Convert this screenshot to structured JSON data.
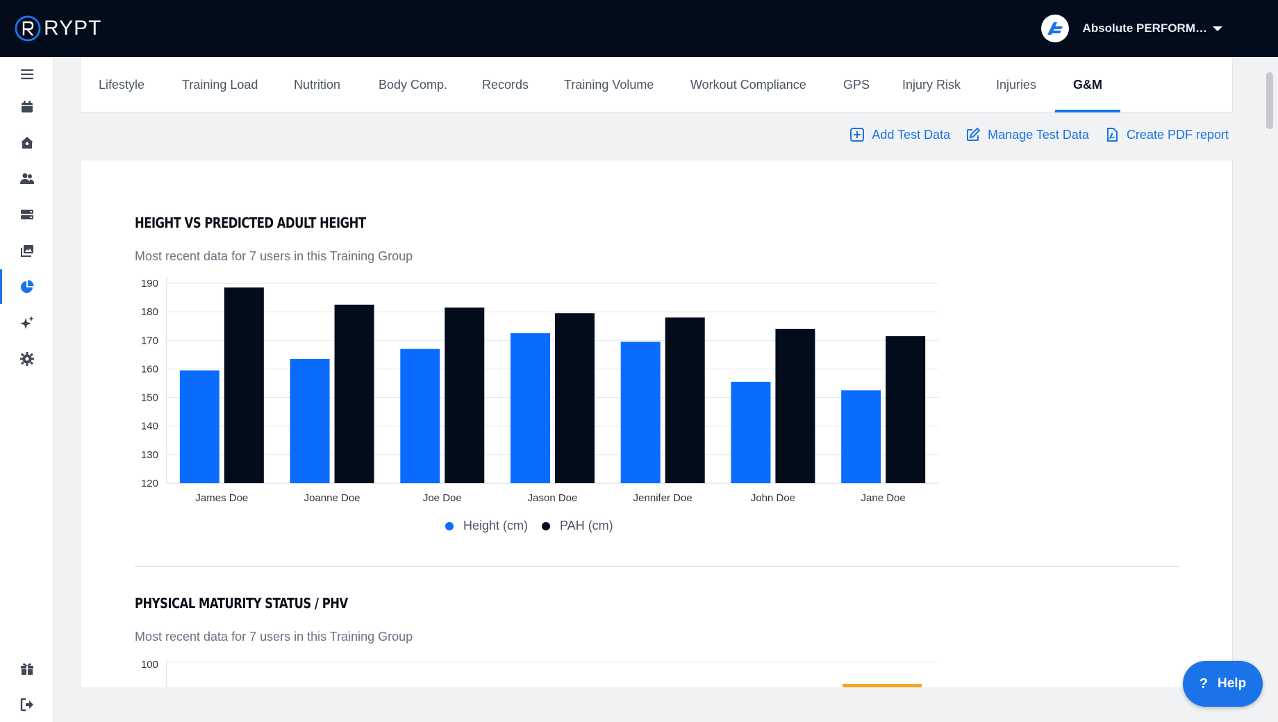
{
  "app": {
    "logo_text": "RYPT",
    "org_name": "Absolute PERFORM…",
    "help_label": "Help",
    "help_glyph": "?"
  },
  "sidebar": {
    "items": [
      {
        "name": "menu-icon"
      },
      {
        "name": "calendar-icon"
      },
      {
        "name": "home-icon"
      },
      {
        "name": "users-icon"
      },
      {
        "name": "database-icon"
      },
      {
        "name": "gallery-icon"
      },
      {
        "name": "pie-chart-icon",
        "active": true
      },
      {
        "name": "sparkles-icon"
      },
      {
        "name": "gear-icon"
      },
      {
        "name": "gift-icon"
      },
      {
        "name": "logout-icon"
      }
    ]
  },
  "tabs": [
    {
      "label": "Lifestyle"
    },
    {
      "label": "Training Load"
    },
    {
      "label": "Nutrition"
    },
    {
      "label": "Body Comp."
    },
    {
      "label": "Records"
    },
    {
      "label": "Training Volume"
    },
    {
      "label": "Workout Compliance"
    },
    {
      "label": "GPS"
    },
    {
      "label": "Injury Risk"
    },
    {
      "label": "Injuries"
    },
    {
      "label": "G&M",
      "active": true
    }
  ],
  "actions": {
    "add": "Add Test Data",
    "manage": "Manage Test Data",
    "pdf": "Create PDF report"
  },
  "section1": {
    "title": "HEIGHT VS PREDICTED ADULT HEIGHT",
    "subtitle": "Most recent data for 7 users in this Training Group"
  },
  "section2": {
    "title": "PHYSICAL MATURITY STATUS / PHV",
    "subtitle": "Most recent data for 7 users in this Training Group",
    "visible_tick": "100"
  },
  "colors": {
    "accent": "#1a73e8",
    "height_bar": "#0a6cff",
    "pah_bar": "#020c1b",
    "topbar": "#020c1b",
    "phv_bar": "#f5a623"
  },
  "chart_data": {
    "type": "bar",
    "categories": [
      "James Doe",
      "Joanne Doe",
      "Joe Doe",
      "Jason Doe",
      "Jennifer Doe",
      "John Doe",
      "Jane Doe"
    ],
    "series": [
      {
        "name": "Height (cm)",
        "values": [
          159.5,
          163.5,
          167,
          172.5,
          169.5,
          155.5,
          152.5
        ]
      },
      {
        "name": "PAH (cm)",
        "values": [
          188.5,
          182.5,
          181.5,
          179.5,
          178,
          174,
          171.5
        ]
      }
    ],
    "yticks": [
      120,
      130,
      140,
      150,
      160,
      170,
      180,
      190
    ],
    "ylim": [
      120,
      190
    ],
    "grid": true,
    "legend": "bottom"
  }
}
